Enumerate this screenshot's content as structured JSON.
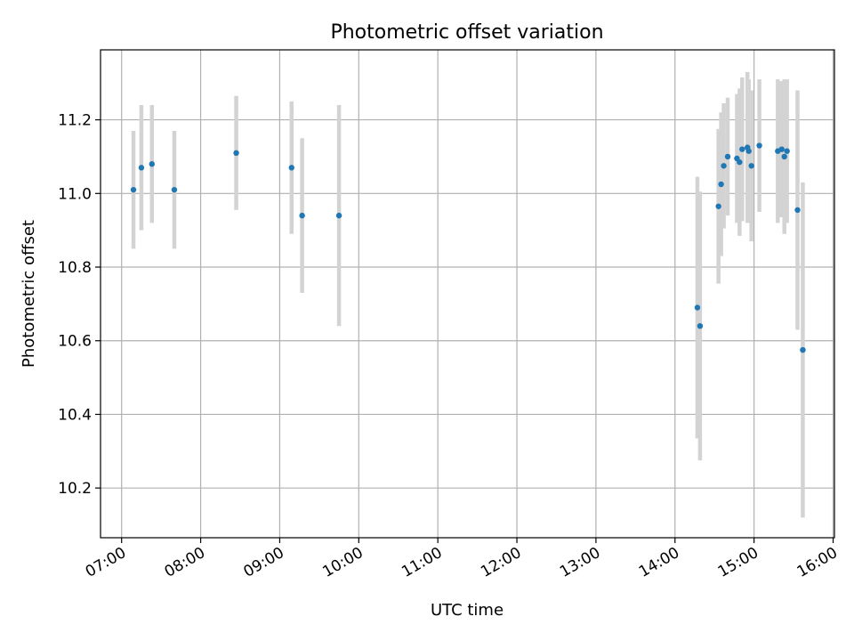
{
  "chart_data": {
    "type": "scatter",
    "title": "Photometric offset variation",
    "xlabel": "UTC time",
    "ylabel": "Photometric offset",
    "grid": true,
    "legend": "none",
    "x_axis": "time",
    "xlim": [
      "06:44",
      "16:01"
    ],
    "ylim": [
      10.065,
      11.39
    ],
    "x_ticks": [
      "07:00",
      "08:00",
      "09:00",
      "10:00",
      "11:00",
      "12:00",
      "13:00",
      "14:00",
      "15:00",
      "16:00"
    ],
    "y_ticks": [
      "10.2",
      "10.4",
      "10.6",
      "10.8",
      "11.0",
      "11.2"
    ],
    "colors": {
      "point": "#1f77b4",
      "errorbar": "#d3d3d3",
      "grid": "#b0b0b0"
    },
    "points": [
      {
        "x": "07:09",
        "y": 11.01,
        "err": 0.16
      },
      {
        "x": "07:15",
        "y": 11.07,
        "err": 0.17
      },
      {
        "x": "07:23",
        "y": 11.08,
        "err": 0.16
      },
      {
        "x": "07:40",
        "y": 11.01,
        "err": 0.16
      },
      {
        "x": "08:27",
        "y": 11.11,
        "err": 0.155
      },
      {
        "x": "09:09",
        "y": 11.07,
        "err": 0.18
      },
      {
        "x": "09:17",
        "y": 10.94,
        "err": 0.21
      },
      {
        "x": "09:45",
        "y": 10.94,
        "err": 0.3
      },
      {
        "x": "14:17",
        "y": 10.69,
        "err": 0.355
      },
      {
        "x": "14:19",
        "y": 10.64,
        "err": 0.365
      },
      {
        "x": "14:33",
        "y": 10.965,
        "err": 0.21
      },
      {
        "x": "14:35",
        "y": 11.025,
        "err": 0.195
      },
      {
        "x": "14:37",
        "y": 11.075,
        "err": 0.17
      },
      {
        "x": "14:40",
        "y": 11.1,
        "err": 0.16
      },
      {
        "x": "14:47",
        "y": 11.095,
        "err": 0.175
      },
      {
        "x": "14:49",
        "y": 11.085,
        "err": 0.2
      },
      {
        "x": "14:51",
        "y": 11.12,
        "err": 0.195
      },
      {
        "x": "14:55",
        "y": 11.125,
        "err": 0.205
      },
      {
        "x": "14:56",
        "y": 11.115,
        "err": 0.195
      },
      {
        "x": "14:58",
        "y": 11.075,
        "err": 0.205
      },
      {
        "x": "15:04",
        "y": 11.13,
        "err": 0.18
      },
      {
        "x": "15:18",
        "y": 11.115,
        "err": 0.195
      },
      {
        "x": "15:21",
        "y": 11.12,
        "err": 0.185
      },
      {
        "x": "15:23",
        "y": 11.1,
        "err": 0.21
      },
      {
        "x": "15:25",
        "y": 11.115,
        "err": 0.195
      },
      {
        "x": "15:33",
        "y": 10.955,
        "err": 0.325
      },
      {
        "x": "15:37",
        "y": 10.575,
        "err": 0.455
      }
    ]
  }
}
